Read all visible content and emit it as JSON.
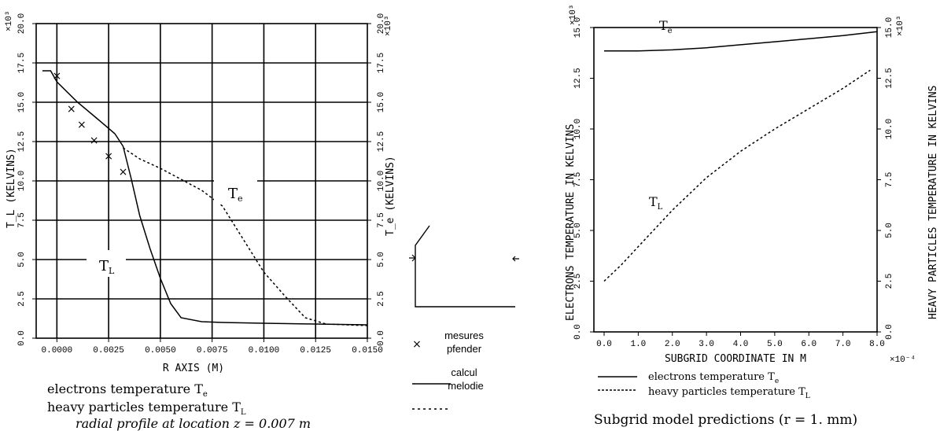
{
  "chart_data": [
    {
      "type": "line",
      "title": "radial profile at location z = 0.007 m",
      "xlabel": "R AXIS (M)",
      "ylabel_left": "T_L (KELVINS)",
      "ylabel_right": "T_e (KELVINS)",
      "y_multiplier": "×10³",
      "xlim": [
        -0.001,
        0.015
      ],
      "ylim": [
        0,
        20
      ],
      "x_ticks": [
        "0.0000",
        "0.0025",
        "0.0050",
        "0.0075",
        "0.0100",
        "0.0125",
        "0.0150"
      ],
      "y_ticks": [
        "0.0",
        "2.5",
        "5.0",
        "7.5",
        "10.0",
        "12.5",
        "15.0",
        "17.5",
        "20.0"
      ],
      "grid": true,
      "series": [
        {
          "name": "T_e",
          "label": "T",
          "sub": "e",
          "style": "dashed",
          "x": [
            0.0032,
            0.004,
            0.005,
            0.006,
            0.007,
            0.008,
            0.009,
            0.01,
            0.011,
            0.012,
            0.013,
            0.015
          ],
          "y": [
            12.1,
            11.4,
            10.8,
            10.1,
            9.4,
            8.4,
            6.3,
            4.2,
            2.7,
            1.3,
            0.9,
            0.8
          ]
        },
        {
          "name": "T_L",
          "label": "T",
          "sub": "L",
          "style": "solid",
          "x": [
            -0.0007,
            -0.0003,
            0.0,
            0.001,
            0.002,
            0.0028,
            0.0032,
            0.0036,
            0.004,
            0.0045,
            0.005,
            0.0055,
            0.006,
            0.007,
            0.008,
            0.01,
            0.0125,
            0.015
          ],
          "y": [
            17.0,
            17.0,
            16.3,
            15.0,
            13.9,
            13.0,
            12.2,
            10.1,
            7.8,
            5.7,
            3.8,
            2.2,
            1.3,
            1.05,
            1.0,
            0.95,
            0.9,
            0.85
          ]
        },
        {
          "name": "mesures pfender",
          "style": "marker",
          "x": [
            0.0,
            0.0007,
            0.0012,
            0.0018,
            0.0025,
            0.0032
          ],
          "y": [
            16.7,
            14.6,
            13.6,
            12.6,
            11.6,
            10.6
          ]
        }
      ],
      "legend_lines": [
        "electrons  temperature  T",
        "heavy  particles  temperature  T"
      ],
      "legend_subs": [
        "e",
        "L"
      ]
    },
    {
      "type": "line",
      "xlabel": "SUBGRID COORDINATE IN M",
      "ylabel_left": "ELECTRONS TEMPERATURE IN KELVINS",
      "ylabel_right": "HEAVY PARTICLES TEMPERATURE IN KELVINS",
      "y_multiplier": "×10³",
      "x_multiplier": "×10⁻⁴",
      "xlim": [
        -0.3,
        8.0
      ],
      "ylim": [
        0,
        15
      ],
      "x_ticks": [
        "0.0",
        "1.0",
        "2.0",
        "3.0",
        "4.0",
        "5.0",
        "6.0",
        "7.0",
        "8.0"
      ],
      "y_ticks": [
        "0.0",
        "2.5",
        "5.0",
        "7.5",
        "10.0",
        "12.5",
        "15.0"
      ],
      "grid": false,
      "series": [
        {
          "name": "T_e",
          "label": "T",
          "sub": "e",
          "style": "solid",
          "x": [
            0.0,
            1.0,
            2.0,
            3.0,
            4.0,
            5.0,
            6.0,
            7.0,
            8.0
          ],
          "y": [
            13.85,
            13.85,
            13.9,
            14.0,
            14.15,
            14.3,
            14.45,
            14.6,
            14.8
          ]
        },
        {
          "name": "T_L",
          "label": "T",
          "sub": "L",
          "style": "dashed",
          "x": [
            0.0,
            0.5,
            1.0,
            1.5,
            2.0,
            3.0,
            4.0,
            5.0,
            6.0,
            7.0,
            7.8
          ],
          "y": [
            2.5,
            3.3,
            4.2,
            5.1,
            6.0,
            7.6,
            8.9,
            10.0,
            11.0,
            12.0,
            12.9
          ]
        }
      ],
      "legend_lines": [
        "electrons  temperature  T",
        "heavy  particles  temperature  T"
      ],
      "legend_subs": [
        "e",
        "L"
      ]
    }
  ],
  "middle_legend": {
    "mesures_line1": "mesures",
    "mesures_line2": "pfender",
    "calcul_line1": "calcul",
    "calcul_line2": "melodie"
  },
  "caption_right": "Subgrid model predictions (r = 1. mm)"
}
